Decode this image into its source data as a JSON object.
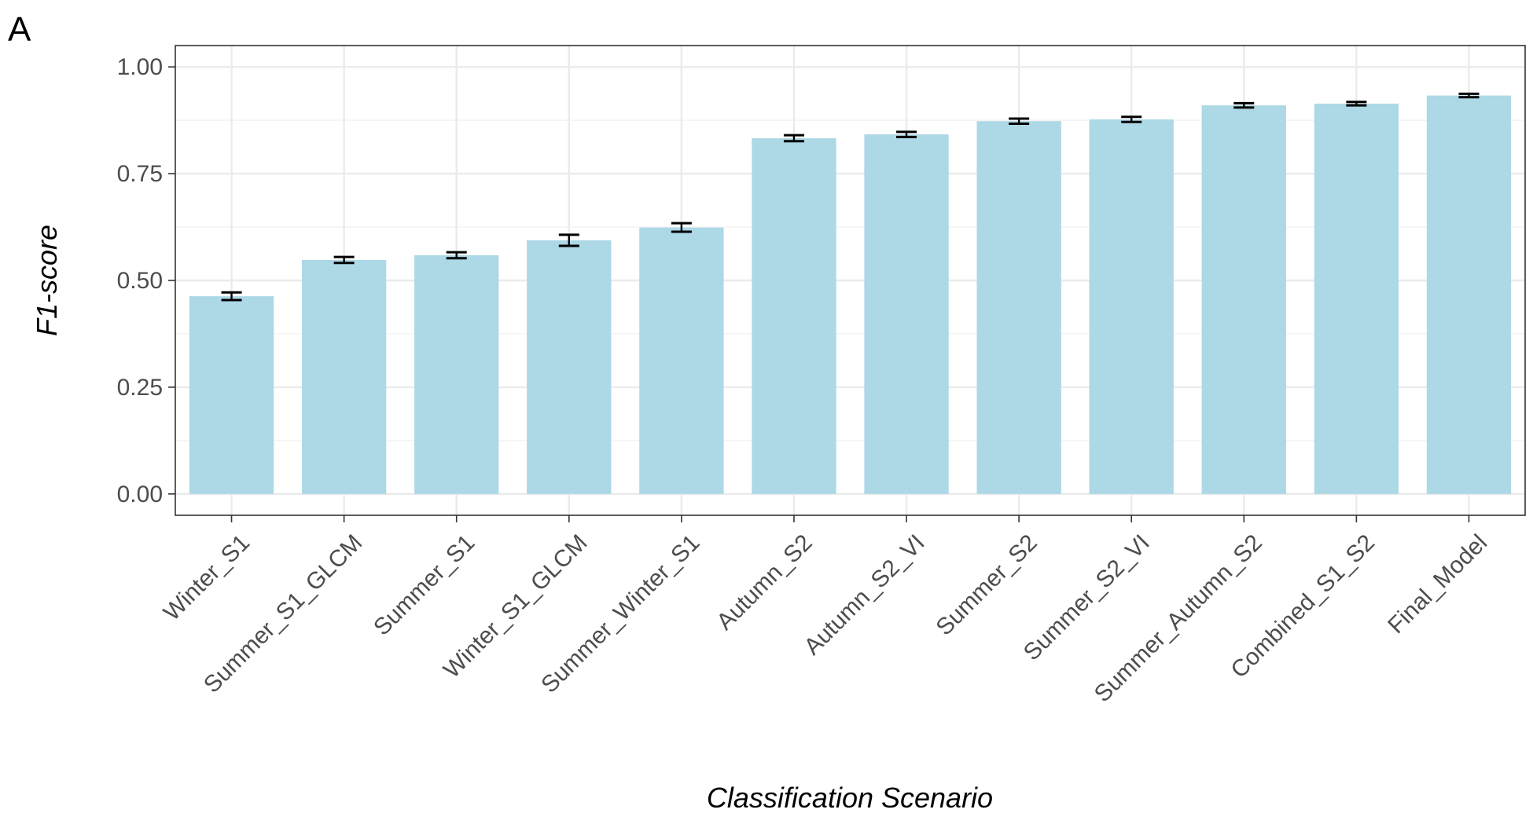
{
  "panel_tag": "A",
  "chart_data": {
    "type": "bar",
    "title": "",
    "xlabel": "Classification Scenario",
    "ylabel": "F1-score",
    "ylim": [
      -0.05,
      1.05
    ],
    "yticks": [
      0.0,
      0.25,
      0.5,
      0.75,
      1.0
    ],
    "ytick_labels": [
      "0.00",
      "0.25",
      "0.50",
      "0.75",
      "1.00"
    ],
    "grid": true,
    "bar_color": "#add8e6",
    "errorbar_color": "#000000",
    "categories": [
      "Winter_S1",
      "Summer_S1_GLCM",
      "Summer_S1",
      "Winter_S1_GLCM",
      "Summer_Winter_S1",
      "Autumn_S2",
      "Autumn_S2_VI",
      "Summer_S2",
      "Summer_S2_VI",
      "Summer_Autumn_S2",
      "Combined_S1_S2",
      "Final_Model"
    ],
    "values": [
      0.463,
      0.548,
      0.559,
      0.594,
      0.624,
      0.833,
      0.842,
      0.873,
      0.877,
      0.91,
      0.914,
      0.933
    ],
    "error_low": [
      0.454,
      0.541,
      0.552,
      0.581,
      0.614,
      0.826,
      0.836,
      0.867,
      0.871,
      0.905,
      0.91,
      0.929
    ],
    "error_high": [
      0.472,
      0.555,
      0.566,
      0.607,
      0.634,
      0.84,
      0.848,
      0.879,
      0.883,
      0.915,
      0.918,
      0.937
    ]
  }
}
